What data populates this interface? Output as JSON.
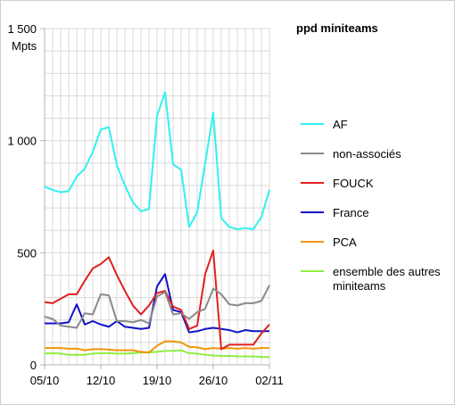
{
  "chart_data": {
    "type": "line",
    "title": "ppd miniteams",
    "ylabel": "Mpts",
    "ylim": [
      0,
      1500
    ],
    "yticks": [
      0,
      500,
      1000,
      1500
    ],
    "ytick_labels": [
      "0",
      "500",
      "1 000",
      "1 500"
    ],
    "x_tick_labels": [
      "05/10",
      "12/10",
      "19/10",
      "26/10",
      "02/11"
    ],
    "x_tick_index": [
      0,
      7,
      14,
      21,
      28
    ],
    "n_points": 29,
    "grid": true,
    "legend_position": "right",
    "series": [
      {
        "name": "AF",
        "color": "#33f0f0",
        "values": [
          795,
          780,
          770,
          775,
          840,
          875,
          950,
          1050,
          1060,
          890,
          800,
          725,
          685,
          695,
          1110,
          1215,
          895,
          870,
          615,
          680,
          900,
          1125,
          655,
          615,
          605,
          610,
          605,
          660,
          780
        ]
      },
      {
        "name": "non-associés",
        "color": "#8a8a8a",
        "values": [
          215,
          205,
          175,
          170,
          165,
          230,
          225,
          315,
          310,
          195,
          195,
          190,
          200,
          185,
          305,
          325,
          225,
          230,
          205,
          235,
          250,
          340,
          315,
          270,
          265,
          275,
          275,
          285,
          355
        ]
      },
      {
        "name": "FOUCK",
        "color": "#e02020",
        "values": [
          280,
          275,
          295,
          315,
          315,
          375,
          430,
          450,
          480,
          400,
          330,
          265,
          225,
          265,
          320,
          330,
          260,
          245,
          160,
          175,
          405,
          510,
          70,
          90,
          90,
          90,
          90,
          140,
          180
        ]
      },
      {
        "name": "France",
        "color": "#1010c8",
        "values": [
          185,
          185,
          185,
          190,
          270,
          180,
          195,
          180,
          170,
          195,
          170,
          165,
          160,
          165,
          350,
          405,
          245,
          235,
          145,
          150,
          160,
          165,
          160,
          155,
          145,
          155,
          150,
          150,
          150
        ]
      },
      {
        "name": "PCA",
        "color": "#f0960a",
        "values": [
          75,
          75,
          75,
          72,
          72,
          65,
          70,
          70,
          68,
          65,
          65,
          65,
          58,
          55,
          85,
          105,
          105,
          100,
          80,
          78,
          70,
          75,
          72,
          75,
          72,
          75,
          72,
          75,
          75
        ]
      },
      {
        "name": "ensemble des autres miniteams",
        "color": "#90ee40",
        "values": [
          50,
          52,
          50,
          45,
          45,
          45,
          50,
          52,
          52,
          50,
          50,
          52,
          55,
          55,
          58,
          62,
          62,
          65,
          52,
          50,
          45,
          42,
          40,
          40,
          38,
          38,
          38,
          35,
          35
        ]
      }
    ]
  }
}
